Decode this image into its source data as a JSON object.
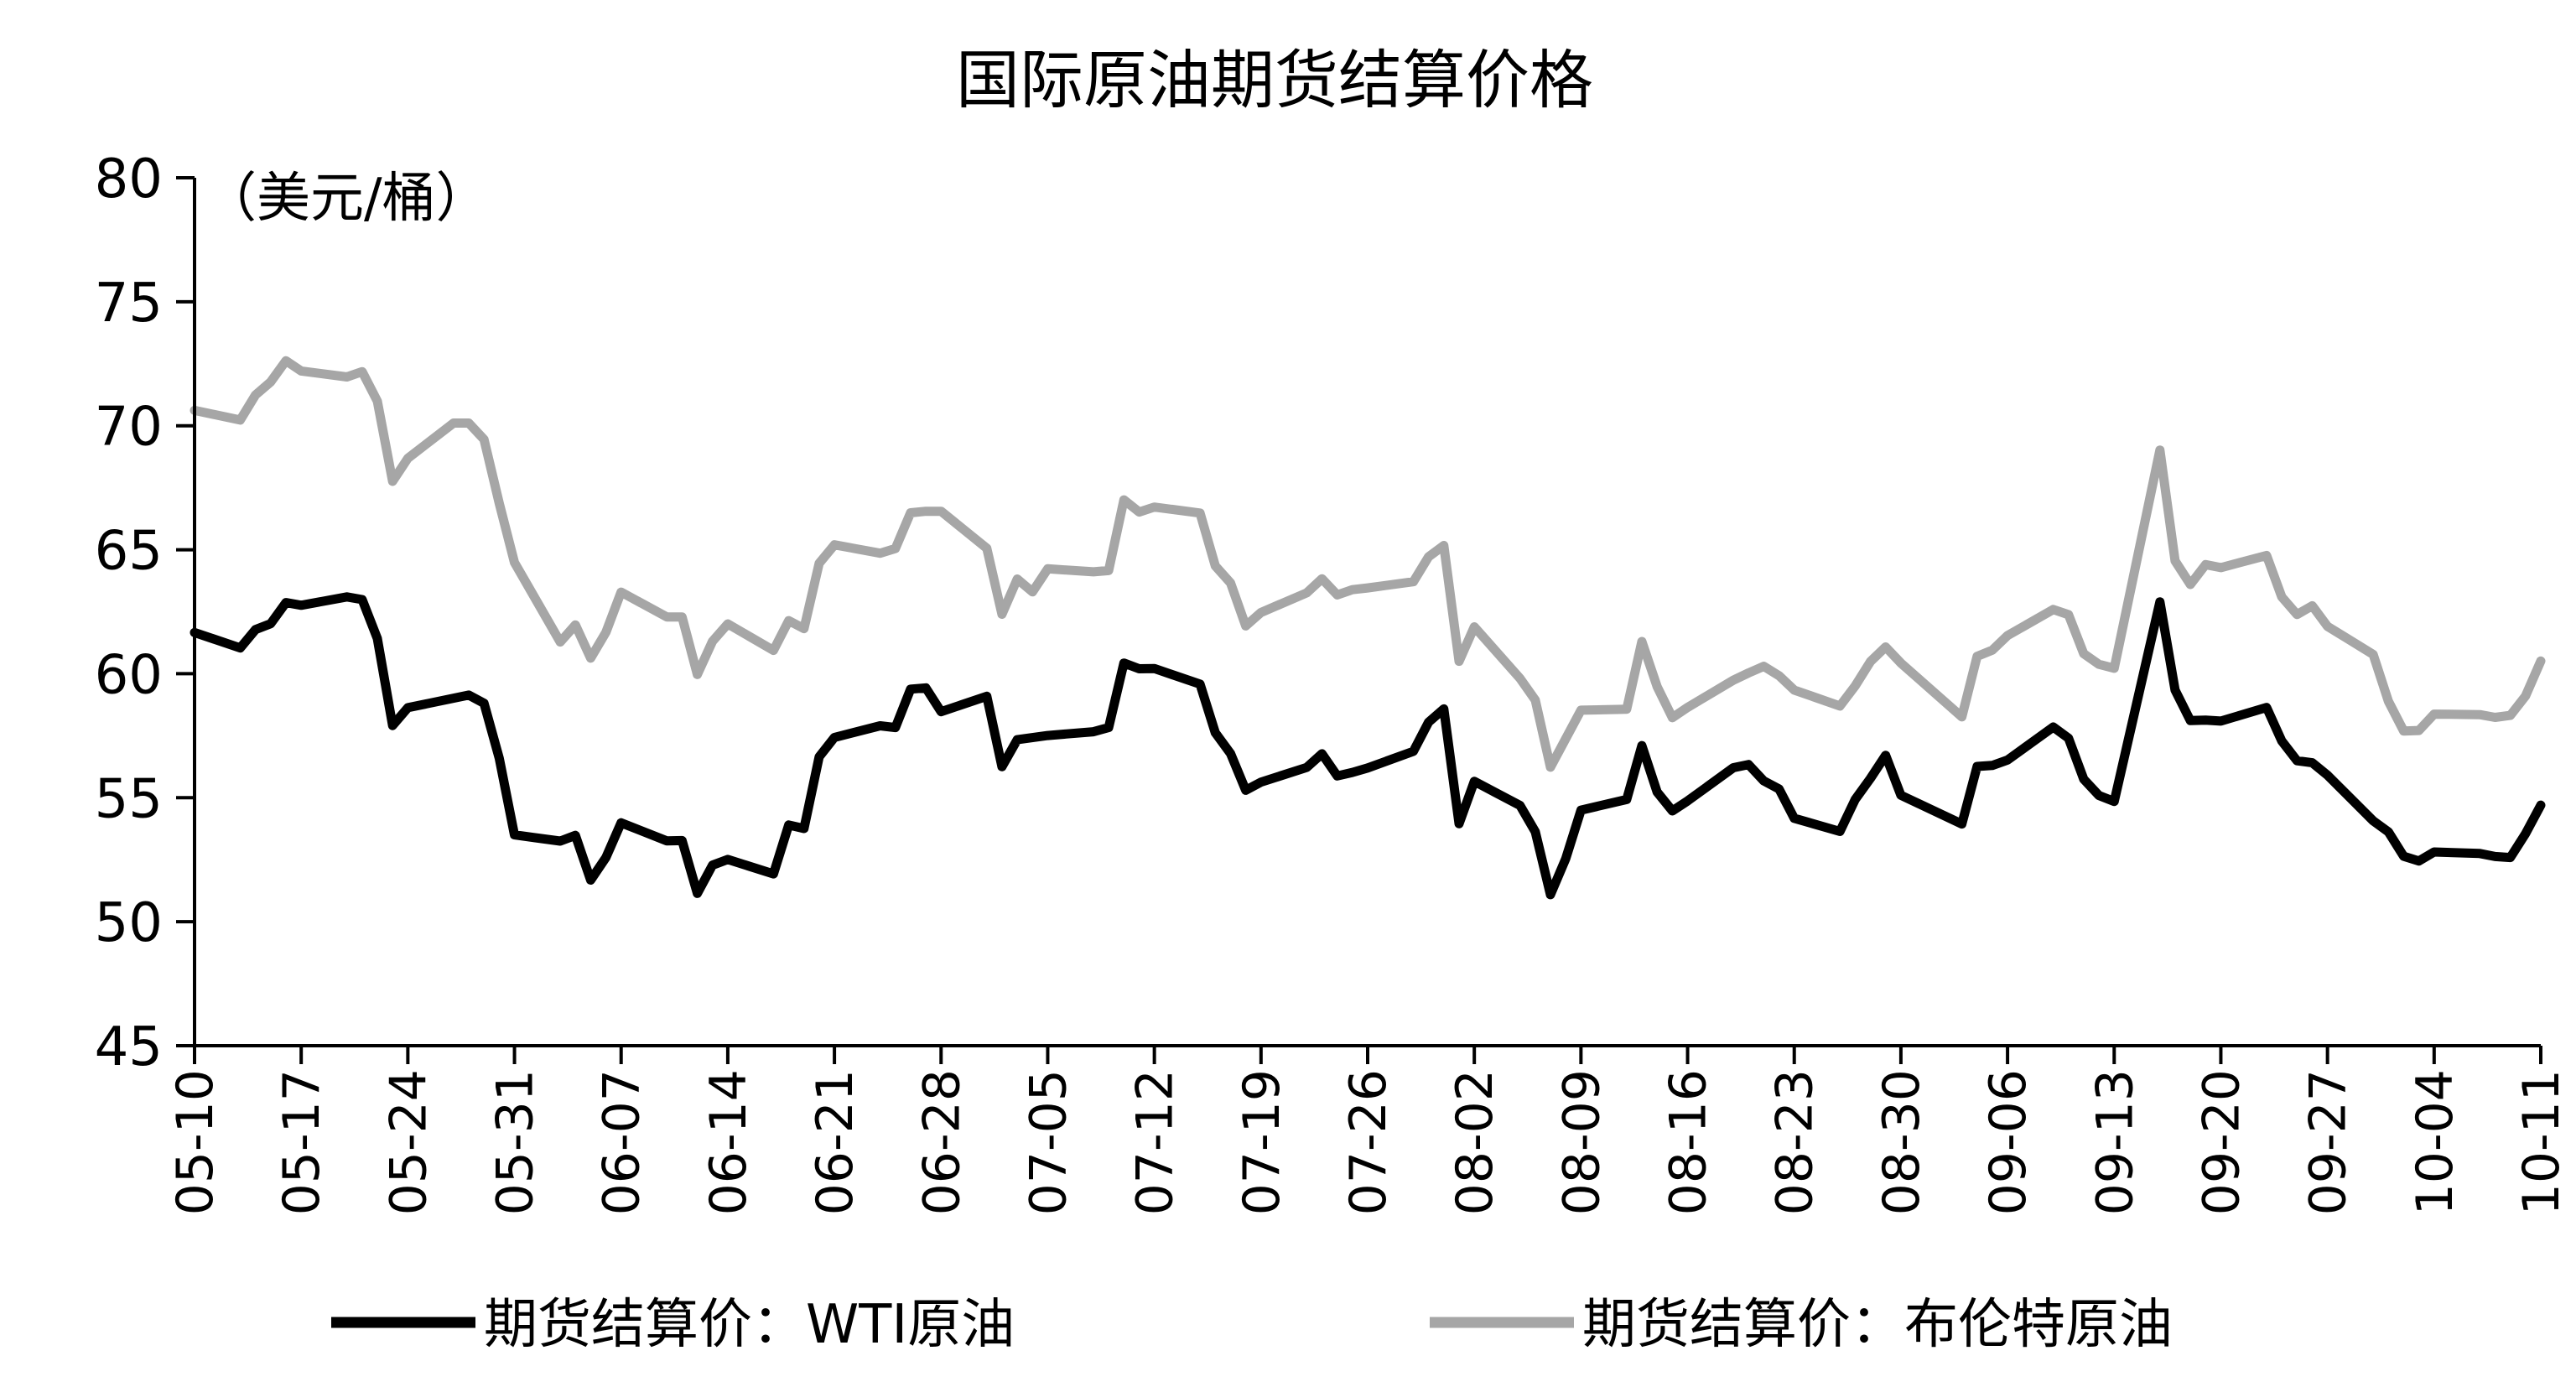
{
  "chart_data": {
    "type": "line",
    "title": "国际原油期货结算价格",
    "unit_label": "（美元/桶）",
    "ylim": [
      45,
      80
    ],
    "yticks": [
      45,
      50,
      55,
      60,
      65,
      70,
      75,
      80
    ],
    "x_range": [
      "2019-05-10",
      "2019-10-11"
    ],
    "xtick_labels": [
      "05-10",
      "05-17",
      "05-24",
      "05-31",
      "06-07",
      "06-14",
      "06-21",
      "06-28",
      "07-05",
      "07-12",
      "07-19",
      "07-26",
      "08-02",
      "08-09",
      "08-16",
      "08-23",
      "08-30",
      "09-06",
      "09-13",
      "09-20",
      "09-27",
      "10-04",
      "10-11"
    ],
    "grid": false,
    "legend_position": "bottom",
    "series": [
      {
        "name": "期货结算价：WTI原油",
        "color": "#000000",
        "points": [
          [
            "2019-05-10",
            61.66
          ],
          [
            "2019-05-13",
            61.04
          ],
          [
            "2019-05-14",
            61.78
          ],
          [
            "2019-05-15",
            62.02
          ],
          [
            "2019-05-16",
            62.87
          ],
          [
            "2019-05-17",
            62.76
          ],
          [
            "2019-05-20",
            63.1
          ],
          [
            "2019-05-21",
            62.99
          ],
          [
            "2019-05-22",
            61.42
          ],
          [
            "2019-05-23",
            57.91
          ],
          [
            "2019-05-24",
            58.63
          ],
          [
            "2019-05-28",
            59.14
          ],
          [
            "2019-05-29",
            58.81
          ],
          [
            "2019-05-30",
            56.59
          ],
          [
            "2019-05-31",
            53.5
          ],
          [
            "2019-06-03",
            53.25
          ],
          [
            "2019-06-04",
            53.48
          ],
          [
            "2019-06-05",
            51.68
          ],
          [
            "2019-06-06",
            52.59
          ],
          [
            "2019-06-07",
            53.99
          ],
          [
            "2019-06-10",
            53.26
          ],
          [
            "2019-06-11",
            53.27
          ],
          [
            "2019-06-12",
            51.14
          ],
          [
            "2019-06-13",
            52.28
          ],
          [
            "2019-06-14",
            52.51
          ],
          [
            "2019-06-17",
            51.93
          ],
          [
            "2019-06-18",
            53.9
          ],
          [
            "2019-06-19",
            53.76
          ],
          [
            "2019-06-20",
            56.65
          ],
          [
            "2019-06-21",
            57.43
          ],
          [
            "2019-06-24",
            57.9
          ],
          [
            "2019-06-25",
            57.83
          ],
          [
            "2019-06-26",
            59.38
          ],
          [
            "2019-06-27",
            59.43
          ],
          [
            "2019-06-28",
            58.47
          ],
          [
            "2019-07-01",
            59.09
          ],
          [
            "2019-07-02",
            56.25
          ],
          [
            "2019-07-03",
            57.34
          ],
          [
            "2019-07-05",
            57.51
          ],
          [
            "2019-07-08",
            57.66
          ],
          [
            "2019-07-09",
            57.83
          ],
          [
            "2019-07-10",
            60.43
          ],
          [
            "2019-07-11",
            60.2
          ],
          [
            "2019-07-12",
            60.21
          ],
          [
            "2019-07-15",
            59.58
          ],
          [
            "2019-07-16",
            57.62
          ],
          [
            "2019-07-17",
            56.78
          ],
          [
            "2019-07-18",
            55.3
          ],
          [
            "2019-07-19",
            55.63
          ],
          [
            "2019-07-22",
            56.22
          ],
          [
            "2019-07-23",
            56.77
          ],
          [
            "2019-07-24",
            55.88
          ],
          [
            "2019-07-25",
            56.02
          ],
          [
            "2019-07-26",
            56.2
          ],
          [
            "2019-07-29",
            56.87
          ],
          [
            "2019-07-30",
            58.05
          ],
          [
            "2019-07-31",
            58.58
          ],
          [
            "2019-08-01",
            53.95
          ],
          [
            "2019-08-02",
            55.66
          ],
          [
            "2019-08-05",
            54.69
          ],
          [
            "2019-08-06",
            53.63
          ],
          [
            "2019-08-07",
            51.09
          ],
          [
            "2019-08-08",
            52.54
          ],
          [
            "2019-08-09",
            54.5
          ],
          [
            "2019-08-12",
            54.93
          ],
          [
            "2019-08-13",
            57.1
          ],
          [
            "2019-08-14",
            55.23
          ],
          [
            "2019-08-15",
            54.47
          ],
          [
            "2019-08-16",
            54.87
          ],
          [
            "2019-08-19",
            56.21
          ],
          [
            "2019-08-20",
            56.34
          ],
          [
            "2019-08-21",
            55.68
          ],
          [
            "2019-08-22",
            55.35
          ],
          [
            "2019-08-23",
            54.17
          ],
          [
            "2019-08-26",
            53.64
          ],
          [
            "2019-08-27",
            54.93
          ],
          [
            "2019-08-28",
            55.78
          ],
          [
            "2019-08-29",
            56.71
          ],
          [
            "2019-08-30",
            55.1
          ],
          [
            "2019-09-03",
            53.94
          ],
          [
            "2019-09-04",
            56.26
          ],
          [
            "2019-09-05",
            56.3
          ],
          [
            "2019-09-06",
            56.52
          ],
          [
            "2019-09-09",
            57.85
          ],
          [
            "2019-09-10",
            57.4
          ],
          [
            "2019-09-11",
            55.75
          ],
          [
            "2019-09-12",
            55.09
          ],
          [
            "2019-09-13",
            54.85
          ],
          [
            "2019-09-16",
            62.9
          ],
          [
            "2019-09-17",
            59.34
          ],
          [
            "2019-09-18",
            58.11
          ],
          [
            "2019-09-19",
            58.13
          ],
          [
            "2019-09-20",
            58.09
          ],
          [
            "2019-09-23",
            58.64
          ],
          [
            "2019-09-24",
            57.29
          ],
          [
            "2019-09-25",
            56.49
          ],
          [
            "2019-09-26",
            56.41
          ],
          [
            "2019-09-27",
            55.91
          ],
          [
            "2019-09-30",
            54.07
          ],
          [
            "2019-10-01",
            53.62
          ],
          [
            "2019-10-02",
            52.64
          ],
          [
            "2019-10-03",
            52.45
          ],
          [
            "2019-10-04",
            52.81
          ],
          [
            "2019-10-07",
            52.75
          ],
          [
            "2019-10-08",
            52.63
          ],
          [
            "2019-10-09",
            52.59
          ],
          [
            "2019-10-10",
            53.55
          ],
          [
            "2019-10-11",
            54.7
          ]
        ]
      },
      {
        "name": "期货结算价：布伦特原油",
        "color": "#a6a6a6",
        "points": [
          [
            "2019-05-10",
            70.62
          ],
          [
            "2019-05-13",
            70.23
          ],
          [
            "2019-05-14",
            71.24
          ],
          [
            "2019-05-15",
            71.77
          ],
          [
            "2019-05-16",
            72.62
          ],
          [
            "2019-05-17",
            72.21
          ],
          [
            "2019-05-20",
            71.97
          ],
          [
            "2019-05-21",
            72.18
          ],
          [
            "2019-05-22",
            70.99
          ],
          [
            "2019-05-23",
            67.76
          ],
          [
            "2019-05-24",
            68.69
          ],
          [
            "2019-05-27",
            70.11
          ],
          [
            "2019-05-28",
            70.11
          ],
          [
            "2019-05-29",
            69.45
          ],
          [
            "2019-05-30",
            66.87
          ],
          [
            "2019-05-31",
            64.49
          ],
          [
            "2019-06-03",
            61.28
          ],
          [
            "2019-06-04",
            61.97
          ],
          [
            "2019-06-05",
            60.63
          ],
          [
            "2019-06-06",
            61.67
          ],
          [
            "2019-06-07",
            63.29
          ],
          [
            "2019-06-10",
            62.29
          ],
          [
            "2019-06-11",
            62.29
          ],
          [
            "2019-06-12",
            59.97
          ],
          [
            "2019-06-13",
            61.31
          ],
          [
            "2019-06-14",
            62.01
          ],
          [
            "2019-06-17",
            60.94
          ],
          [
            "2019-06-18",
            62.14
          ],
          [
            "2019-06-19",
            61.82
          ],
          [
            "2019-06-20",
            64.45
          ],
          [
            "2019-06-21",
            65.2
          ],
          [
            "2019-06-24",
            64.86
          ],
          [
            "2019-06-25",
            65.05
          ],
          [
            "2019-06-26",
            66.49
          ],
          [
            "2019-06-27",
            66.55
          ],
          [
            "2019-06-28",
            66.55
          ],
          [
            "2019-07-01",
            65.06
          ],
          [
            "2019-07-02",
            62.4
          ],
          [
            "2019-07-03",
            63.82
          ],
          [
            "2019-07-04",
            63.3
          ],
          [
            "2019-07-05",
            64.23
          ],
          [
            "2019-07-08",
            64.11
          ],
          [
            "2019-07-09",
            64.16
          ],
          [
            "2019-07-10",
            67.01
          ],
          [
            "2019-07-11",
            66.52
          ],
          [
            "2019-07-12",
            66.72
          ],
          [
            "2019-07-15",
            66.48
          ],
          [
            "2019-07-16",
            64.35
          ],
          [
            "2019-07-17",
            63.66
          ],
          [
            "2019-07-18",
            61.93
          ],
          [
            "2019-07-19",
            62.47
          ],
          [
            "2019-07-22",
            63.26
          ],
          [
            "2019-07-23",
            63.83
          ],
          [
            "2019-07-24",
            63.18
          ],
          [
            "2019-07-25",
            63.39
          ],
          [
            "2019-07-26",
            63.46
          ],
          [
            "2019-07-29",
            63.71
          ],
          [
            "2019-07-30",
            64.72
          ],
          [
            "2019-07-31",
            65.17
          ],
          [
            "2019-08-01",
            60.5
          ],
          [
            "2019-08-02",
            61.89
          ],
          [
            "2019-08-05",
            59.81
          ],
          [
            "2019-08-06",
            58.94
          ],
          [
            "2019-08-07",
            56.23
          ],
          [
            "2019-08-08",
            57.38
          ],
          [
            "2019-08-09",
            58.53
          ],
          [
            "2019-08-12",
            58.57
          ],
          [
            "2019-08-13",
            61.3
          ],
          [
            "2019-08-14",
            59.48
          ],
          [
            "2019-08-15",
            58.23
          ],
          [
            "2019-08-16",
            58.64
          ],
          [
            "2019-08-19",
            59.74
          ],
          [
            "2019-08-20",
            60.03
          ],
          [
            "2019-08-21",
            60.3
          ],
          [
            "2019-08-22",
            59.92
          ],
          [
            "2019-08-23",
            59.34
          ],
          [
            "2019-08-26",
            58.7
          ],
          [
            "2019-08-27",
            59.51
          ],
          [
            "2019-08-28",
            60.49
          ],
          [
            "2019-08-29",
            61.08
          ],
          [
            "2019-08-30",
            60.43
          ],
          [
            "2019-09-03",
            58.26
          ],
          [
            "2019-09-04",
            60.7
          ],
          [
            "2019-09-05",
            60.95
          ],
          [
            "2019-09-06",
            61.54
          ],
          [
            "2019-09-09",
            62.59
          ],
          [
            "2019-09-10",
            62.38
          ],
          [
            "2019-09-11",
            60.81
          ],
          [
            "2019-09-12",
            60.38
          ],
          [
            "2019-09-13",
            60.22
          ],
          [
            "2019-09-16",
            69.02
          ],
          [
            "2019-09-17",
            64.55
          ],
          [
            "2019-09-18",
            63.6
          ],
          [
            "2019-09-19",
            64.4
          ],
          [
            "2019-09-20",
            64.28
          ],
          [
            "2019-09-23",
            64.77
          ],
          [
            "2019-09-24",
            63.1
          ],
          [
            "2019-09-25",
            62.39
          ],
          [
            "2019-09-26",
            62.74
          ],
          [
            "2019-09-27",
            61.91
          ],
          [
            "2019-09-30",
            60.78
          ],
          [
            "2019-10-01",
            58.89
          ],
          [
            "2019-10-02",
            57.69
          ],
          [
            "2019-10-03",
            57.71
          ],
          [
            "2019-10-04",
            58.37
          ],
          [
            "2019-10-07",
            58.35
          ],
          [
            "2019-10-08",
            58.24
          ],
          [
            "2019-10-09",
            58.32
          ],
          [
            "2019-10-10",
            59.1
          ],
          [
            "2019-10-11",
            60.51
          ]
        ]
      }
    ]
  }
}
